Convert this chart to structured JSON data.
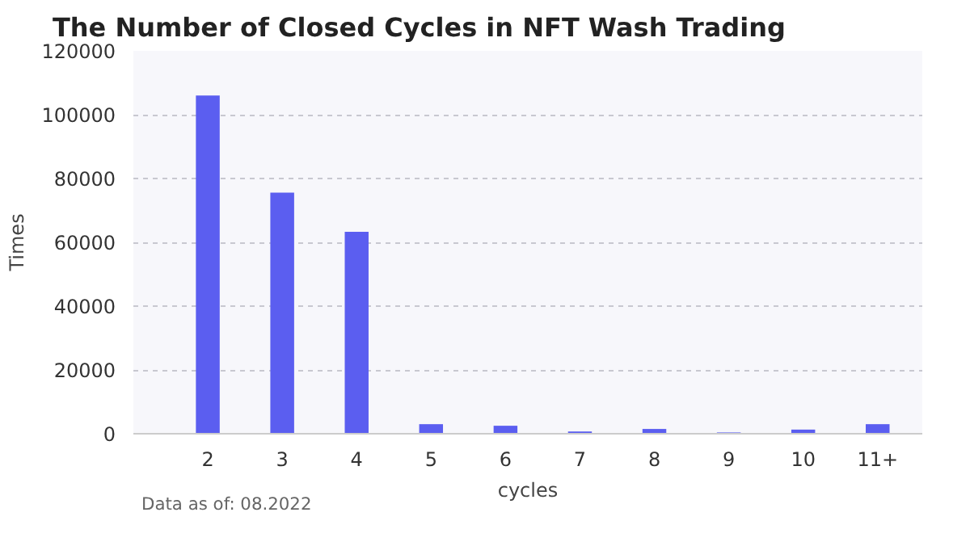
{
  "chart_data": {
    "type": "bar",
    "title": "The Number of Closed Cycles in NFT Wash Trading",
    "xlabel": "cycles",
    "ylabel": "Times",
    "categories": [
      "2",
      "3",
      "4",
      "5",
      "6",
      "7",
      "8",
      "9",
      "10",
      "11+"
    ],
    "values": [
      106000,
      75600,
      63300,
      3000,
      2500,
      700,
      1500,
      400,
      1300,
      3000
    ],
    "color": "#5b5ef0",
    "ylim": [
      0,
      120000
    ],
    "yticks": [
      0,
      20000,
      40000,
      60000,
      80000,
      100000,
      120000
    ],
    "grid": "y",
    "annotations": [
      "Data as of: 08.2022"
    ]
  }
}
